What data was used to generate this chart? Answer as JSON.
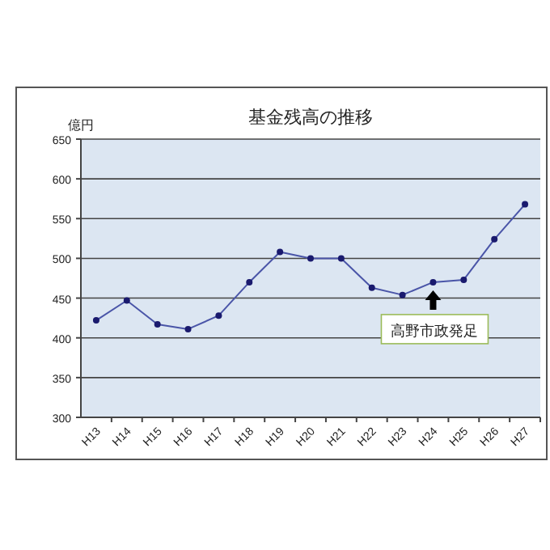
{
  "chart_data": {
    "type": "line",
    "title": "基金残高の推移",
    "ylabel": "億円",
    "categories": [
      "H13",
      "H14",
      "H15",
      "H16",
      "H17",
      "H18",
      "H19",
      "H20",
      "H21",
      "H22",
      "H23",
      "H24",
      "H25",
      "H26",
      "H27"
    ],
    "series": [
      {
        "color": "#4a55a8",
        "values": [
          422,
          447,
          417,
          411,
          428,
          470,
          508,
          500,
          500,
          463,
          454,
          470,
          473,
          524,
          568
        ]
      }
    ],
    "ylim": [
      300,
      650
    ],
    "yticks": [
      300,
      350,
      400,
      450,
      500,
      550,
      600,
      650
    ],
    "grid": "y",
    "marker": "circle",
    "annotations": [
      {
        "text": "高野市政発足",
        "x": "H24",
        "y": 470
      }
    ]
  }
}
